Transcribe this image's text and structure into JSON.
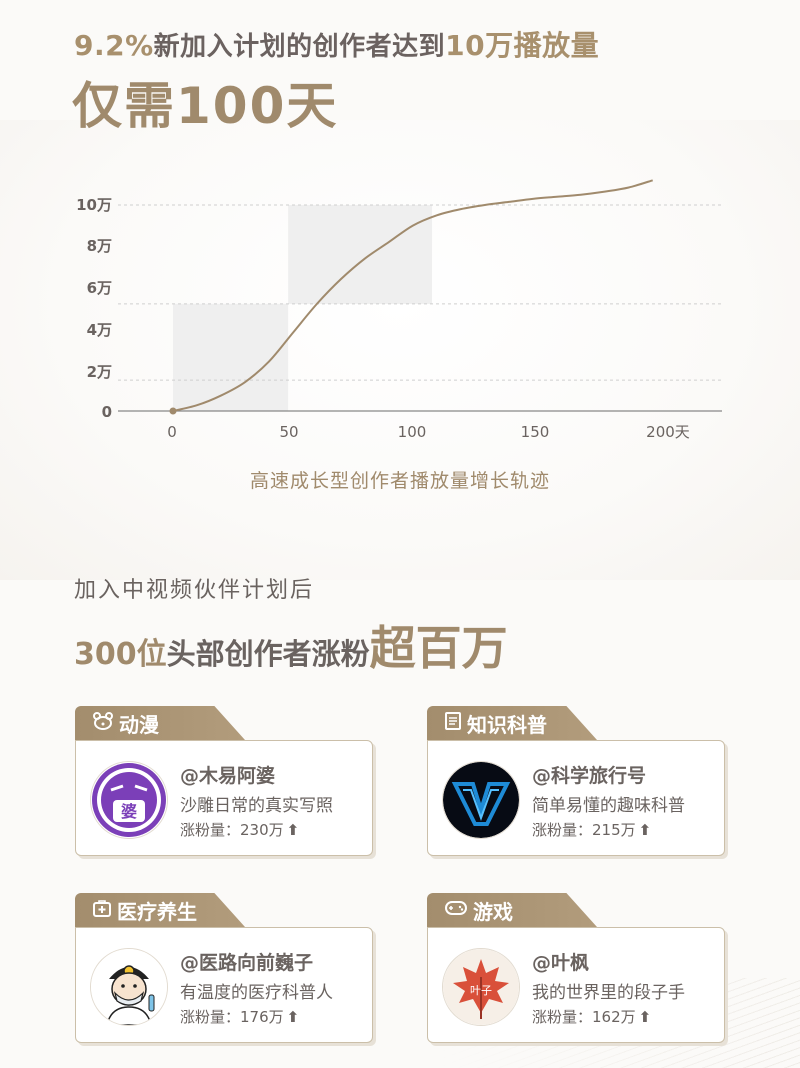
{
  "headline": {
    "pct": "9.2%",
    "mid": "新加入计划的创作者达到",
    "target": "10万播放量",
    "days": "仅需100天"
  },
  "chart_data": {
    "type": "line",
    "title": "",
    "caption": "高速成长型创作者播放量增长轨迹",
    "x_ticks": [
      "0",
      "50",
      "100",
      "150",
      "200天"
    ],
    "y_ticks": [
      "0",
      "2万",
      "4万",
      "6万",
      "8万",
      "10万"
    ],
    "xlim": [
      0,
      220
    ],
    "ylim": [
      0,
      100000
    ],
    "series": [
      {
        "x": [
          0,
          10,
          20,
          30,
          40,
          50,
          60,
          70,
          80,
          90,
          100,
          110,
          120,
          130,
          140,
          150,
          160,
          170,
          180,
          190,
          200
        ],
        "values": [
          0,
          2800,
          7500,
          14000,
          24000,
          38000,
          52000,
          64000,
          74000,
          82000,
          90000,
          95000,
          98000,
          100000,
          101500,
          103000,
          104000,
          105000,
          106500,
          108500,
          112000
        ]
      }
    ],
    "highlight_ranges": [
      [
        0,
        48
      ],
      [
        48,
        108
      ]
    ],
    "dashed_gridlines": [
      15000,
      52000,
      100000
    ],
    "colors": {
      "line": "#a08a6c",
      "highlight": "#efefef",
      "grid": "#cfcfcf",
      "axis": "#888888"
    }
  },
  "section": {
    "line1": "加入中视频伙伴计划后",
    "line2_num": "300位",
    "line2_mid": "头部创作者涨粉",
    "line2_big": "超百万"
  },
  "cards": [
    {
      "category": "动漫",
      "icon": "bear-icon",
      "name": "@木易阿婆",
      "desc": "沙雕日常的真实写照",
      "fans": "涨粉量：230万",
      "avatar_text": "婆"
    },
    {
      "category": "知识科普",
      "icon": "document-icon",
      "name": "@科学旅行号",
      "desc": "简单易懂的趣味科普",
      "fans": "涨粉量：215万",
      "avatar_text": ""
    },
    {
      "category": "医疗养生",
      "icon": "medkit-icon",
      "name": "@医路向前巍子",
      "desc": "有温度的医疗科普人",
      "fans": "涨粉量：176万",
      "avatar_text": ""
    },
    {
      "category": "游戏",
      "icon": "gamepad-icon",
      "name": "@叶枫",
      "desc": "我的世界里的段子手",
      "fans": "涨粉量：162万",
      "avatar_text": "叶子"
    }
  ],
  "arrow": "⬆",
  "colors": {
    "accent": "#a08a6c",
    "text": "#6a6360",
    "tab": "#a38d6d"
  }
}
